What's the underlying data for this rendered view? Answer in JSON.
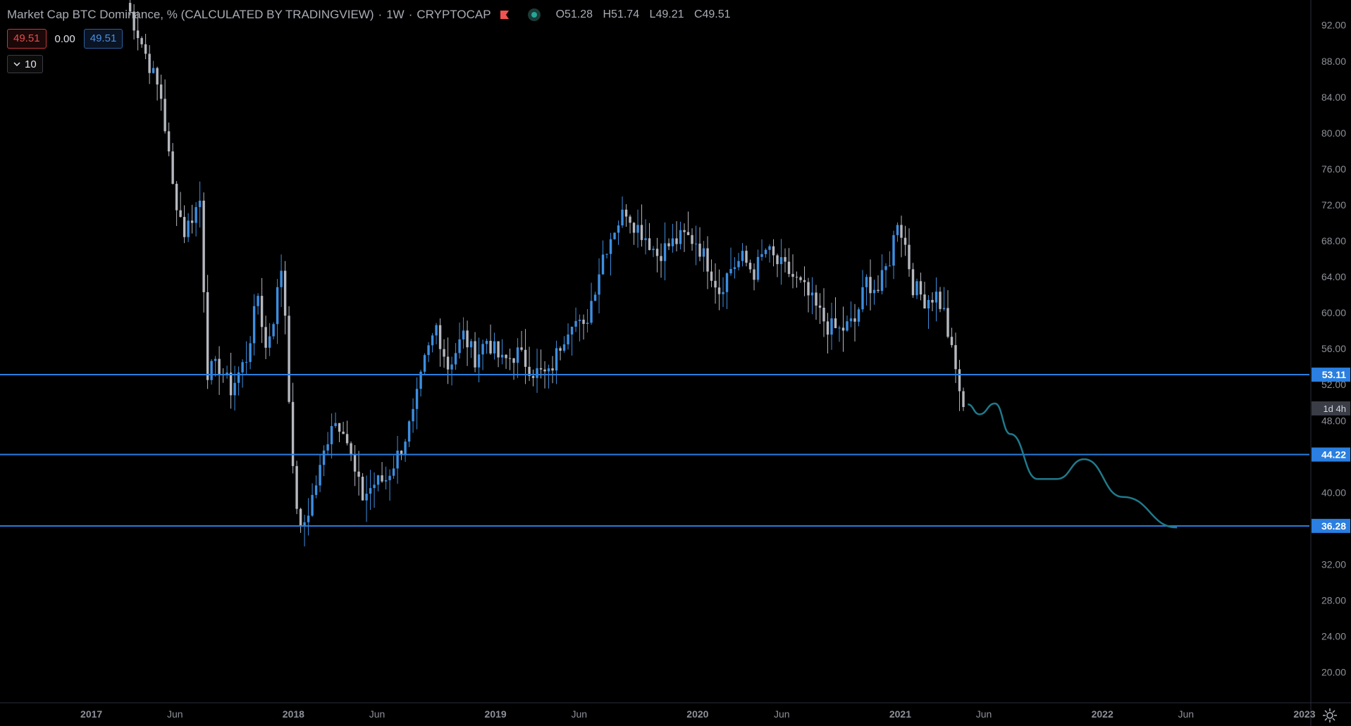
{
  "header": {
    "symbol": "Market Cap BTC Dominance, % (CALCULATED BY TRADINGVIEW)",
    "interval": "1W",
    "exchange": "CRYPTOCAP",
    "ohlc": {
      "o": "O51.28",
      "h": "H51.74",
      "l": "L49.21",
      "c": "C49.51"
    }
  },
  "price_boxes": {
    "bid": "49.51",
    "spread": "0.00",
    "ask": "49.51"
  },
  "indicators_toggle": {
    "label": "10"
  },
  "colors": {
    "up": "#3d8ee0",
    "down": "#b5b8bf",
    "hline": "#2a7fe0",
    "projection": "#1f7a8c",
    "axis_text": "#8d9099",
    "background": "#000000"
  },
  "chart_data": {
    "type": "candlestick",
    "title": "Market Cap BTC Dominance, % (CALCULATED BY TRADINGVIEW) · 1W · CRYPTOCAP",
    "ylim": [
      16.6,
      94.8
    ],
    "y_ticks": [
      "92.00",
      "88.00",
      "84.00",
      "80.00",
      "76.00",
      "72.00",
      "68.00",
      "64.00",
      "60.00",
      "56.00",
      "52.00",
      "48.00",
      "40.00",
      "36.00",
      "32.00",
      "28.00",
      "24.00",
      "20.00"
    ],
    "x_ticks": [
      {
        "label": "2017",
        "date": "2017-01-01"
      },
      {
        "label": "Jun",
        "date": "2017-06-01"
      },
      {
        "label": "2018",
        "date": "2018-01-01"
      },
      {
        "label": "Jun",
        "date": "2018-06-01"
      },
      {
        "label": "2019",
        "date": "2019-01-01"
      },
      {
        "label": "Jun",
        "date": "2019-06-01"
      },
      {
        "label": "2020",
        "date": "2020-01-01"
      },
      {
        "label": "Jun",
        "date": "2020-06-01"
      },
      {
        "label": "2021",
        "date": "2021-01-01"
      },
      {
        "label": "Jun",
        "date": "2021-06-01"
      },
      {
        "label": "2022",
        "date": "2022-01-01"
      },
      {
        "label": "Jun",
        "date": "2022-06-01"
      },
      {
        "label": "2023",
        "date": "2023-01-01"
      }
    ],
    "x_range": [
      "2016-07-20",
      "2023-01-10"
    ],
    "closes": [
      {
        "date": "2017-03-05",
        "close": 94.5
      },
      {
        "date": "2017-04-02",
        "close": 90.0
      },
      {
        "date": "2017-05-07",
        "close": 84.0
      },
      {
        "date": "2017-05-28",
        "close": 74.0
      },
      {
        "date": "2017-06-18",
        "close": 69.0
      },
      {
        "date": "2017-07-16",
        "close": 72.5
      },
      {
        "date": "2017-07-30",
        "close": 53.5
      },
      {
        "date": "2017-08-20",
        "close": 54.0
      },
      {
        "date": "2017-09-10",
        "close": 51.5
      },
      {
        "date": "2017-10-08",
        "close": 55.0
      },
      {
        "date": "2017-10-29",
        "close": 62.0
      },
      {
        "date": "2017-11-12",
        "close": 56.0
      },
      {
        "date": "2017-11-26",
        "close": 59.5
      },
      {
        "date": "2017-12-10",
        "close": 65.0
      },
      {
        "date": "2017-12-17",
        "close": 60.0
      },
      {
        "date": "2017-12-31",
        "close": 42.0
      },
      {
        "date": "2018-01-14",
        "close": 35.5
      },
      {
        "date": "2018-01-28",
        "close": 38.0
      },
      {
        "date": "2018-02-18",
        "close": 42.5
      },
      {
        "date": "2018-03-11",
        "close": 48.0
      },
      {
        "date": "2018-04-01",
        "close": 47.5
      },
      {
        "date": "2018-04-22",
        "close": 42.0
      },
      {
        "date": "2018-05-06",
        "close": 39.5
      },
      {
        "date": "2018-05-27",
        "close": 41.0
      },
      {
        "date": "2018-06-17",
        "close": 41.5
      },
      {
        "date": "2018-07-15",
        "close": 45.0
      },
      {
        "date": "2018-08-05",
        "close": 48.5
      },
      {
        "date": "2018-08-26",
        "close": 54.5
      },
      {
        "date": "2018-09-16",
        "close": 58.5
      },
      {
        "date": "2018-10-07",
        "close": 54.0
      },
      {
        "date": "2018-11-04",
        "close": 57.5
      },
      {
        "date": "2018-11-25",
        "close": 55.0
      },
      {
        "date": "2018-12-16",
        "close": 57.0
      },
      {
        "date": "2019-01-13",
        "close": 54.5
      },
      {
        "date": "2019-02-10",
        "close": 55.5
      },
      {
        "date": "2019-03-10",
        "close": 53.5
      },
      {
        "date": "2019-04-07",
        "close": 53.0
      },
      {
        "date": "2019-04-28",
        "close": 56.5
      },
      {
        "date": "2019-05-19",
        "close": 59.5
      },
      {
        "date": "2019-06-09",
        "close": 58.0
      },
      {
        "date": "2019-06-30",
        "close": 63.0
      },
      {
        "date": "2019-07-14",
        "close": 66.5
      },
      {
        "date": "2019-08-04",
        "close": 69.5
      },
      {
        "date": "2019-08-25",
        "close": 71.5
      },
      {
        "date": "2019-09-08",
        "close": 70.0
      },
      {
        "date": "2019-09-29",
        "close": 68.5
      },
      {
        "date": "2019-10-20",
        "close": 66.5
      },
      {
        "date": "2019-11-10",
        "close": 67.5
      },
      {
        "date": "2019-12-08",
        "close": 68.5
      },
      {
        "date": "2019-12-29",
        "close": 68.0
      },
      {
        "date": "2020-01-19",
        "close": 65.5
      },
      {
        "date": "2020-02-09",
        "close": 62.5
      },
      {
        "date": "2020-03-01",
        "close": 65.0
      },
      {
        "date": "2020-03-22",
        "close": 66.0
      },
      {
        "date": "2020-04-12",
        "close": 64.5
      },
      {
        "date": "2020-05-03",
        "close": 67.0
      },
      {
        "date": "2020-05-24",
        "close": 65.5
      },
      {
        "date": "2020-06-14",
        "close": 64.5
      },
      {
        "date": "2020-07-12",
        "close": 62.5
      },
      {
        "date": "2020-08-02",
        "close": 60.5
      },
      {
        "date": "2020-08-23",
        "close": 58.5
      },
      {
        "date": "2020-09-13",
        "close": 58.0
      },
      {
        "date": "2020-10-11",
        "close": 59.0
      },
      {
        "date": "2020-11-01",
        "close": 63.5
      },
      {
        "date": "2020-11-22",
        "close": 62.5
      },
      {
        "date": "2020-12-13",
        "close": 66.0
      },
      {
        "date": "2020-12-27",
        "close": 70.5
      },
      {
        "date": "2021-01-10",
        "close": 67.5
      },
      {
        "date": "2021-01-24",
        "close": 63.0
      },
      {
        "date": "2021-02-14",
        "close": 61.5
      },
      {
        "date": "2021-03-07",
        "close": 62.0
      },
      {
        "date": "2021-03-21",
        "close": 60.0
      },
      {
        "date": "2021-04-04",
        "close": 55.5
      },
      {
        "date": "2021-04-18",
        "close": 51.5
      },
      {
        "date": "2021-04-25",
        "close": 49.51
      }
    ],
    "horizontal_lines": [
      53.11,
      44.22,
      36.28
    ],
    "price_tags": [
      "53.11",
      "44.22",
      "36.28"
    ],
    "countdown_tag": "1d 4h",
    "projection_path": [
      {
        "date": "2021-05-03",
        "value": 49.8
      },
      {
        "date": "2021-05-24",
        "value": 48.7
      },
      {
        "date": "2021-06-21",
        "value": 49.9
      },
      {
        "date": "2021-07-19",
        "value": 46.5
      },
      {
        "date": "2021-09-06",
        "value": 41.5
      },
      {
        "date": "2021-10-11",
        "value": 41.5
      },
      {
        "date": "2021-11-29",
        "value": 43.7
      },
      {
        "date": "2022-02-07",
        "value": 39.5
      },
      {
        "date": "2022-05-16",
        "value": 36.1
      }
    ]
  }
}
